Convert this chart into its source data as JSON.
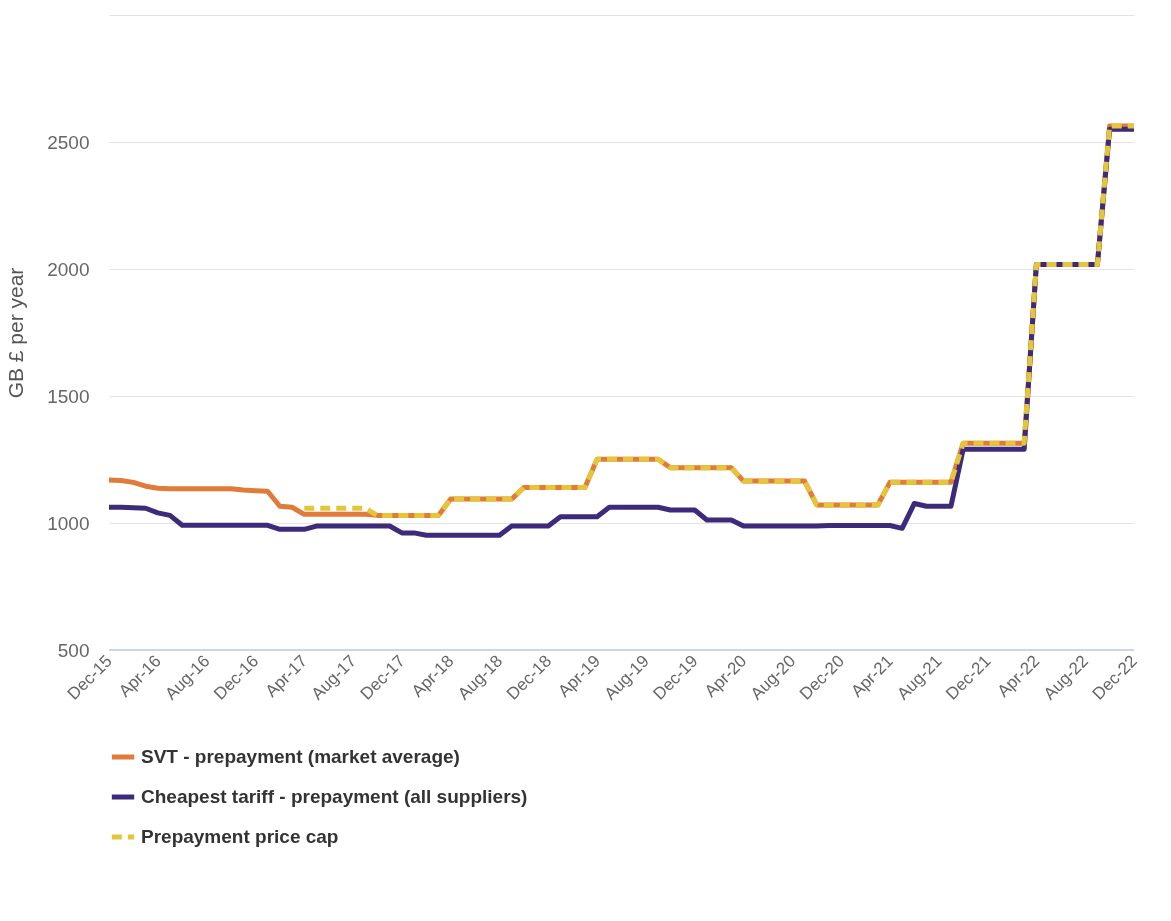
{
  "chart_data": {
    "type": "line",
    "ylabel": "GB £ per year",
    "categories": [
      "Dec-15",
      null,
      null,
      null,
      "Apr-16",
      null,
      null,
      null,
      "Aug-16",
      null,
      null,
      null,
      "Dec-16",
      null,
      null,
      null,
      "Apr-17",
      null,
      null,
      null,
      "Aug-17",
      null,
      null,
      null,
      "Dec-17",
      null,
      null,
      null,
      "Apr-18",
      null,
      null,
      null,
      "Aug-18",
      null,
      null,
      null,
      "Dec-18",
      null,
      null,
      null,
      "Apr-19",
      null,
      null,
      null,
      "Aug-19",
      null,
      null,
      null,
      "Dec-19",
      null,
      null,
      null,
      "Apr-20",
      null,
      null,
      null,
      "Aug-20",
      null,
      null,
      null,
      "Dec-20",
      null,
      null,
      null,
      "Apr-21",
      null,
      null,
      null,
      "Aug-21",
      null,
      null,
      null,
      "Dec-21",
      null,
      null,
      null,
      "Apr-22",
      null,
      null,
      null,
      "Aug-22",
      null,
      null,
      null,
      "Dec-22"
    ],
    "series": [
      {
        "name": "SVT - prepayment (market average)",
        "color": "#e07b39",
        "line_style": "solid",
        "values": [
          1169,
          1167,
          1160,
          1145,
          1137,
          1135,
          1135,
          1135,
          1135,
          1135,
          1135,
          1130,
          1127,
          1125,
          1066,
          1062,
          1034,
          1034,
          1034,
          1034,
          1034,
          1034,
          1030,
          1030,
          1030,
          1030,
          1030,
          1030,
          1094,
          1094,
          1094,
          1094,
          1094,
          1094,
          1140,
          1140,
          1140,
          1140,
          1140,
          1140,
          1251,
          1251,
          1251,
          1251,
          1251,
          1251,
          1218,
          1218,
          1218,
          1218,
          1218,
          1218,
          1165,
          1165,
          1165,
          1165,
          1165,
          1165,
          1071,
          1071,
          1071,
          1071,
          1071,
          1071,
          1160,
          1160,
          1160,
          1160,
          1160,
          1160,
          1314,
          1314,
          1314,
          1314,
          1314,
          1314,
          2018,
          2018,
          2018,
          2018,
          2018,
          2018,
          2563,
          2563,
          2563
        ]
      },
      {
        "name": "Cheapest tariff - prepayment (all suppliers)",
        "color": "#3d2a7a",
        "line_style": "solid",
        "values": [
          1062,
          1062,
          1060,
          1058,
          1040,
          1030,
          991,
          991,
          991,
          991,
          991,
          991,
          991,
          991,
          975,
          975,
          975,
          988,
          988,
          988,
          988,
          988,
          988,
          988,
          961,
          961,
          952,
          952,
          952,
          952,
          952,
          952,
          952,
          988,
          988,
          988,
          988,
          1025,
          1025,
          1025,
          1025,
          1062,
          1062,
          1062,
          1062,
          1062,
          1051,
          1051,
          1051,
          1012,
          1012,
          1012,
          988,
          988,
          988,
          988,
          988,
          988,
          988,
          990,
          990,
          990,
          990,
          990,
          990,
          979,
          1077,
          1066,
          1066,
          1066,
          1290,
          1290,
          1290,
          1290,
          1290,
          1290,
          2018,
          2018,
          2018,
          2018,
          2018,
          2018,
          2550,
          2550,
          2550
        ]
      },
      {
        "name": "Prepayment price cap",
        "color": "#e5c63a",
        "line_style": "dashed",
        "values": [
          null,
          null,
          null,
          null,
          null,
          null,
          null,
          null,
          null,
          null,
          null,
          null,
          null,
          null,
          null,
          null,
          1058,
          1058,
          1058,
          1058,
          1058,
          1058,
          1030,
          1030,
          1030,
          1030,
          1030,
          1030,
          1094,
          1094,
          1094,
          1094,
          1094,
          1094,
          1140,
          1140,
          1140,
          1140,
          1140,
          1140,
          1251,
          1251,
          1251,
          1251,
          1251,
          1251,
          1218,
          1218,
          1218,
          1218,
          1218,
          1218,
          1165,
          1165,
          1165,
          1165,
          1165,
          1165,
          1071,
          1071,
          1071,
          1071,
          1071,
          1071,
          1160,
          1160,
          1160,
          1160,
          1160,
          1160,
          1314,
          1314,
          1314,
          1314,
          1314,
          1314,
          2018,
          2018,
          2018,
          2018,
          2018,
          2018,
          2563,
          2563,
          2563
        ]
      }
    ],
    "ylim": [
      500,
      3000
    ],
    "yticks": [
      500,
      1000,
      1500,
      2000,
      2500,
      {
        "value": 3000,
        "label": null
      }
    ],
    "grid": "y",
    "legend": "bottom"
  }
}
